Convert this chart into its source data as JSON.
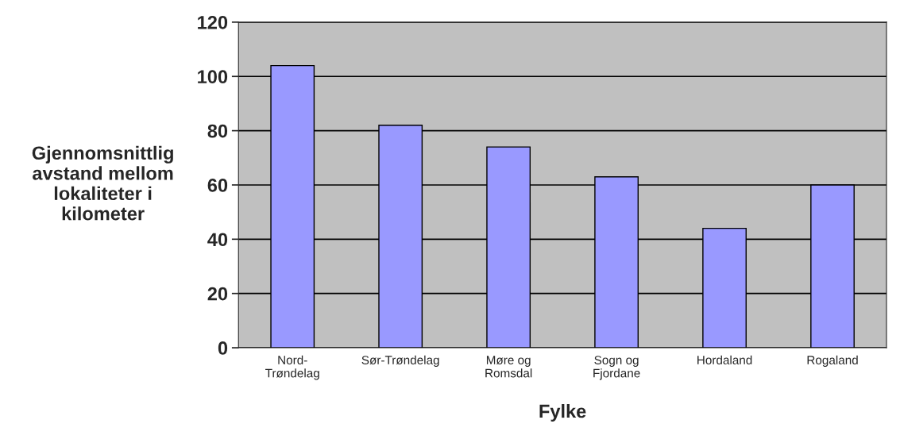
{
  "chart_data": {
    "type": "bar",
    "xlabel": "Fylke",
    "ylabel": "Gjennomsnittlig\navstand mellom\nlokaliteter i\nkilometer",
    "categories": [
      "Nord-\nTrøndelag",
      "Sør-Trøndelag",
      "Møre og\nRomsdal",
      "Sogn og\nFjordane",
      "Hordaland",
      "Rogaland"
    ],
    "values": [
      104,
      82,
      74,
      63,
      44,
      60
    ],
    "color": "#9999ff",
    "ylim": [
      0,
      120
    ],
    "yticks": [
      0,
      20,
      40,
      60,
      80,
      100,
      120
    ],
    "grid": "y"
  }
}
